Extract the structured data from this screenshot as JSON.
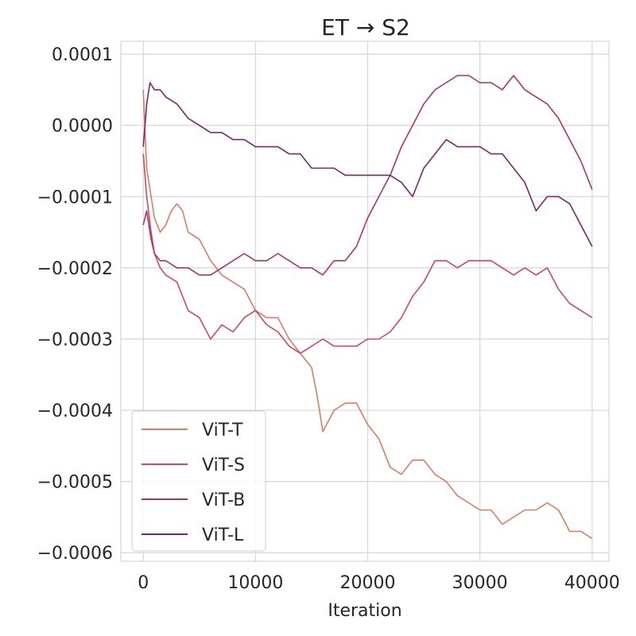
{
  "chart_data": {
    "type": "line",
    "title": "ET → S2",
    "xlabel": "Iteration",
    "ylabel": "",
    "xlim": [
      -2000,
      41500
    ],
    "ylim": [
      -0.000612,
      0.000118
    ],
    "xticks": [
      0,
      10000,
      20000,
      30000,
      40000
    ],
    "xtick_labels": [
      "0",
      "10000",
      "20000",
      "30000",
      "40000"
    ],
    "yticks": [
      0.0001,
      0.0,
      -0.0001,
      -0.0002,
      -0.0003,
      -0.0004,
      -0.0005,
      -0.0006
    ],
    "ytick_labels": [
      "0.0001",
      "0.0000",
      "−0.0001",
      "−0.0002",
      "−0.0003",
      "−0.0004",
      "−0.0005",
      "−0.0006"
    ],
    "grid": true,
    "legend_position": "lower-left",
    "series": [
      {
        "name": "ViT-T",
        "color": "#e07b63",
        "x": [
          0,
          300,
          700,
          1000,
          1500,
          2000,
          2500,
          3000,
          3500,
          4000,
          5000,
          6000,
          7000,
          8000,
          9000,
          10000,
          11000,
          12000,
          13000,
          14000,
          15000,
          15500,
          16000,
          17000,
          18000,
          19000,
          20000,
          21000,
          22000,
          23000,
          24000,
          25000,
          26000,
          27000,
          28000,
          29000,
          30000,
          31000,
          32000,
          33000,
          34000,
          35000,
          36000,
          37000,
          38000,
          39000,
          40000
        ],
        "y": [
          5e-05,
          -6e-05,
          -0.0001,
          -0.00013,
          -0.00015,
          -0.00014,
          -0.00012,
          -0.00011,
          -0.00012,
          -0.00015,
          -0.00016,
          -0.00019,
          -0.00021,
          -0.00022,
          -0.00023,
          -0.00026,
          -0.00027,
          -0.00027,
          -0.0003,
          -0.00032,
          -0.00034,
          -0.00038,
          -0.00043,
          -0.0004,
          -0.00039,
          -0.00039,
          -0.00042,
          -0.00044,
          -0.00048,
          -0.00049,
          -0.00047,
          -0.00047,
          -0.00049,
          -0.0005,
          -0.00052,
          -0.00053,
          -0.00054,
          -0.00054,
          -0.00056,
          -0.00055,
          -0.00054,
          -0.00054,
          -0.00053,
          -0.00054,
          -0.00057,
          -0.00057,
          -0.00058
        ]
      },
      {
        "name": "ViT-S",
        "color": "#d3495a",
        "x": [
          0,
          300,
          700,
          1000,
          1500,
          2000,
          3000,
          4000,
          5000,
          6000,
          7000,
          8000,
          9000,
          10000,
          11000,
          12000,
          13000,
          14000,
          15000,
          16000,
          17000,
          18000,
          19000,
          20000,
          21000,
          22000,
          23000,
          24000,
          25000,
          26000,
          27000,
          28000,
          29000,
          30000,
          31000,
          32000,
          33000,
          34000,
          35000,
          36000,
          37000,
          38000,
          39000,
          40000
        ],
        "y": [
          -4e-05,
          -0.0001,
          -0.00015,
          -0.00018,
          -0.0002,
          -0.00021,
          -0.00022,
          -0.00026,
          -0.00027,
          -0.0003,
          -0.00028,
          -0.00029,
          -0.00027,
          -0.00026,
          -0.00028,
          -0.00029,
          -0.00031,
          -0.00032,
          -0.00031,
          -0.0003,
          -0.00031,
          -0.00031,
          -0.00031,
          -0.0003,
          -0.0003,
          -0.00029,
          -0.00027,
          -0.00024,
          -0.00022,
          -0.00019,
          -0.00019,
          -0.0002,
          -0.00019,
          -0.00019,
          -0.00019,
          -0.0002,
          -0.00021,
          -0.0002,
          -0.00021,
          -0.0002,
          -0.00023,
          -0.00025,
          -0.00026,
          -0.00027
        ]
      },
      {
        "name": "ViT-B",
        "color": "#b0326a",
        "x": [
          0,
          300,
          700,
          1000,
          1500,
          2000,
          3000,
          4000,
          5000,
          6000,
          7000,
          8000,
          9000,
          10000,
          11000,
          12000,
          13000,
          14000,
          15000,
          16000,
          17000,
          18000,
          19000,
          20000,
          21000,
          22000,
          23000,
          24000,
          25000,
          26000,
          27000,
          28000,
          29000,
          30000,
          31000,
          32000,
          33000,
          34000,
          35000,
          36000,
          37000,
          38000,
          39000,
          40000
        ],
        "y": [
          -0.00014,
          -0.00012,
          -0.00016,
          -0.00018,
          -0.00019,
          -0.00019,
          -0.0002,
          -0.0002,
          -0.00021,
          -0.00021,
          -0.0002,
          -0.00019,
          -0.00018,
          -0.00019,
          -0.00019,
          -0.00018,
          -0.00019,
          -0.0002,
          -0.0002,
          -0.00021,
          -0.00019,
          -0.00019,
          -0.00017,
          -0.00013,
          -0.0001,
          -7e-05,
          -3e-05,
          0.0,
          3e-05,
          5e-05,
          6e-05,
          7e-05,
          7e-05,
          6e-05,
          6e-05,
          5e-05,
          7e-05,
          5e-05,
          4e-05,
          3e-05,
          1e-05,
          -2e-05,
          -5e-05,
          -9e-05
        ]
      },
      {
        "name": "ViT-L",
        "color": "#7b2570",
        "x": [
          0,
          300,
          600,
          1000,
          1500,
          2000,
          3000,
          4000,
          5000,
          6000,
          7000,
          8000,
          9000,
          10000,
          11000,
          12000,
          13000,
          14000,
          15000,
          16000,
          17000,
          18000,
          19000,
          20000,
          21000,
          22000,
          23000,
          24000,
          25000,
          26000,
          27000,
          28000,
          29000,
          30000,
          31000,
          32000,
          33000,
          34000,
          35000,
          36000,
          37000,
          38000,
          39000,
          40000
        ],
        "y": [
          -3e-05,
          3e-05,
          6e-05,
          5e-05,
          5e-05,
          4e-05,
          3e-05,
          1e-05,
          0.0,
          -1e-05,
          -1e-05,
          -2e-05,
          -2e-05,
          -3e-05,
          -3e-05,
          -3e-05,
          -4e-05,
          -4e-05,
          -6e-05,
          -6e-05,
          -6e-05,
          -7e-05,
          -7e-05,
          -7e-05,
          -7e-05,
          -7e-05,
          -8e-05,
          -0.0001,
          -6e-05,
          -4e-05,
          -2e-05,
          -3e-05,
          -3e-05,
          -3e-05,
          -4e-05,
          -4e-05,
          -6e-05,
          -8e-05,
          -0.00012,
          -0.0001,
          -0.0001,
          -0.00011,
          -0.00014,
          -0.00017
        ]
      }
    ]
  }
}
